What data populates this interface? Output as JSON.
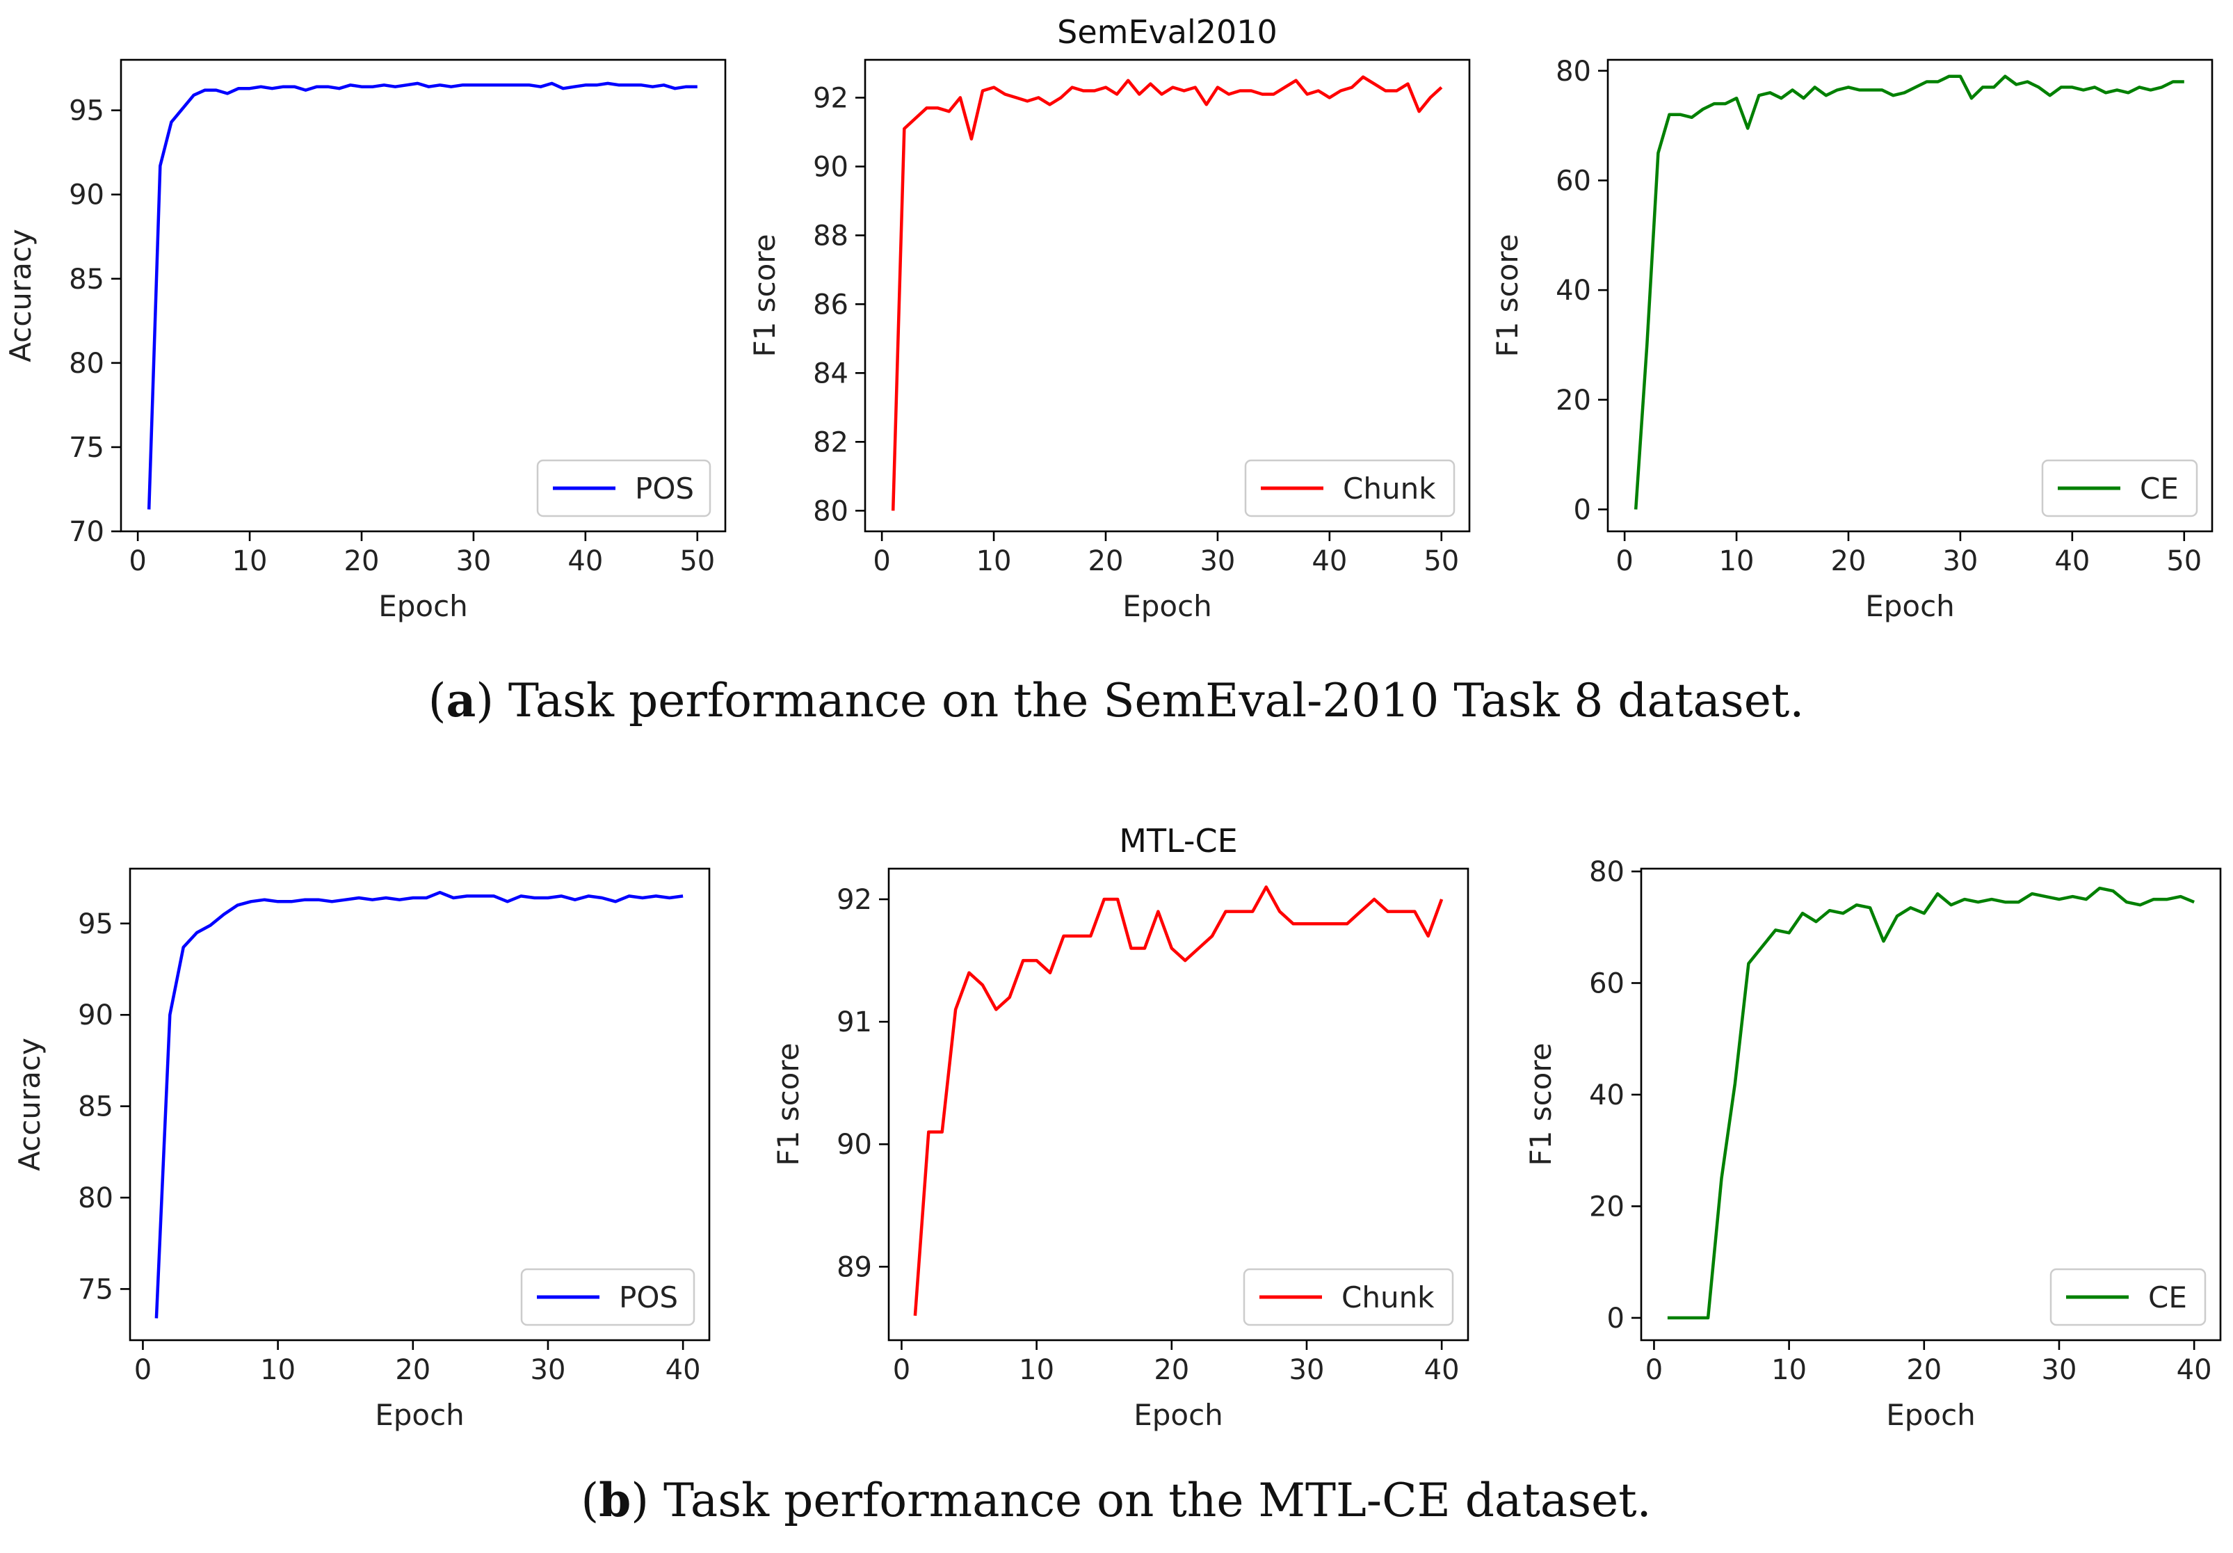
{
  "captions": {
    "a": {
      "letter": "a",
      "text": ") Task performance on the SemEval-2010 Task 8 dataset."
    },
    "b": {
      "letter": "b",
      "text": ") Task performance on the MTL-CE dataset."
    }
  },
  "caption_open_paren": "(",
  "chart_data": [
    {
      "type": "line",
      "title": "",
      "xlabel": "Epoch",
      "ylabel": "Accuracy",
      "xlim": [
        -1.5,
        52.5
      ],
      "ylim": [
        70,
        98
      ],
      "xticks": [
        0,
        10,
        20,
        30,
        40,
        50
      ],
      "yticks": [
        70,
        75,
        80,
        85,
        90,
        95
      ],
      "legend": "lower-right",
      "series": [
        {
          "name": "POS",
          "color": "#0000ff",
          "x": [
            1,
            2,
            3,
            4,
            5,
            6,
            7,
            8,
            9,
            10,
            11,
            12,
            13,
            14,
            15,
            16,
            17,
            18,
            19,
            20,
            21,
            22,
            23,
            24,
            25,
            26,
            27,
            28,
            29,
            30,
            31,
            32,
            33,
            34,
            35,
            36,
            37,
            38,
            39,
            40,
            41,
            42,
            43,
            44,
            45,
            46,
            47,
            48,
            49,
            50
          ],
          "y": [
            71.3,
            91.7,
            94.3,
            95.1,
            95.9,
            96.2,
            96.2,
            96.0,
            96.3,
            96.3,
            96.4,
            96.3,
            96.4,
            96.4,
            96.2,
            96.4,
            96.4,
            96.3,
            96.5,
            96.4,
            96.4,
            96.5,
            96.4,
            96.5,
            96.6,
            96.4,
            96.5,
            96.4,
            96.5,
            96.5,
            96.5,
            96.5,
            96.5,
            96.5,
            96.5,
            96.4,
            96.6,
            96.3,
            96.4,
            96.5,
            96.5,
            96.6,
            96.5,
            96.5,
            96.5,
            96.4,
            96.5,
            96.3,
            96.4,
            96.4
          ]
        }
      ]
    },
    {
      "type": "line",
      "title": "SemEval2010",
      "xlabel": "Epoch",
      "ylabel": "F1 score",
      "xlim": [
        -1.5,
        52.5
      ],
      "ylim": [
        79.4,
        93.1
      ],
      "xticks": [
        0,
        10,
        20,
        30,
        40,
        50
      ],
      "yticks": [
        80,
        82,
        84,
        86,
        88,
        90,
        92
      ],
      "legend": "lower-right",
      "series": [
        {
          "name": "Chunk",
          "color": "#ff0000",
          "x": [
            1,
            2,
            3,
            4,
            5,
            6,
            7,
            8,
            9,
            10,
            11,
            12,
            13,
            14,
            15,
            16,
            17,
            18,
            19,
            20,
            21,
            22,
            23,
            24,
            25,
            26,
            27,
            28,
            29,
            30,
            31,
            32,
            33,
            34,
            35,
            36,
            37,
            38,
            39,
            40,
            41,
            42,
            43,
            44,
            45,
            46,
            47,
            48,
            49,
            50
          ],
          "y": [
            80.0,
            91.1,
            91.4,
            91.7,
            91.7,
            91.6,
            92.0,
            90.8,
            92.2,
            92.3,
            92.1,
            92.0,
            91.9,
            92.0,
            91.8,
            92.0,
            92.3,
            92.2,
            92.2,
            92.3,
            92.1,
            92.5,
            92.1,
            92.4,
            92.1,
            92.3,
            92.2,
            92.3,
            91.8,
            92.3,
            92.1,
            92.2,
            92.2,
            92.1,
            92.1,
            92.3,
            92.5,
            92.1,
            92.2,
            92.0,
            92.2,
            92.3,
            92.6,
            92.4,
            92.2,
            92.2,
            92.4,
            91.6,
            92.0,
            92.3
          ]
        }
      ]
    },
    {
      "type": "line",
      "title": "",
      "xlabel": "Epoch",
      "ylabel": "F1 score",
      "xlim": [
        -1.5,
        52.5
      ],
      "ylim": [
        -4,
        82
      ],
      "xticks": [
        0,
        10,
        20,
        30,
        40,
        50
      ],
      "yticks": [
        0,
        20,
        40,
        60,
        80
      ],
      "legend": "lower-right",
      "series": [
        {
          "name": "CE",
          "color": "#008000",
          "x": [
            1,
            2,
            3,
            4,
            5,
            6,
            7,
            8,
            9,
            10,
            11,
            12,
            13,
            14,
            15,
            16,
            17,
            18,
            19,
            20,
            21,
            22,
            23,
            24,
            25,
            26,
            27,
            28,
            29,
            30,
            31,
            32,
            33,
            34,
            35,
            36,
            37,
            38,
            39,
            40,
            41,
            42,
            43,
            44,
            45,
            46,
            47,
            48,
            49,
            50
          ],
          "y": [
            0,
            30,
            65,
            72,
            72,
            71.5,
            73,
            74,
            74,
            75,
            69.5,
            75.5,
            76,
            75,
            76.5,
            75,
            77,
            75.5,
            76.5,
            77,
            76.5,
            76.5,
            76.5,
            75.5,
            76,
            77,
            78,
            78,
            79,
            79,
            75,
            77,
            77,
            79,
            77.5,
            78,
            77,
            75.5,
            77,
            77,
            76.5,
            77,
            76,
            76.5,
            76,
            77,
            76.5,
            77,
            78,
            78
          ]
        }
      ]
    },
    {
      "type": "line",
      "title": "",
      "xlabel": "Epoch",
      "ylabel": "Accuracy",
      "xlim": [
        -0.95,
        41.95
      ],
      "ylim": [
        72.2,
        98.0
      ],
      "xticks": [
        0,
        10,
        20,
        30,
        40
      ],
      "yticks": [
        75,
        80,
        85,
        90,
        95
      ],
      "legend": "lower-right",
      "series": [
        {
          "name": "POS",
          "color": "#0000ff",
          "x": [
            1,
            2,
            3,
            4,
            5,
            6,
            7,
            8,
            9,
            10,
            11,
            12,
            13,
            14,
            15,
            16,
            17,
            18,
            19,
            20,
            21,
            22,
            23,
            24,
            25,
            26,
            27,
            28,
            29,
            30,
            31,
            32,
            33,
            34,
            35,
            36,
            37,
            38,
            39,
            40
          ],
          "y": [
            73.4,
            90.0,
            93.7,
            94.5,
            94.9,
            95.5,
            96.0,
            96.2,
            96.3,
            96.2,
            96.2,
            96.3,
            96.3,
            96.2,
            96.3,
            96.4,
            96.3,
            96.4,
            96.3,
            96.4,
            96.4,
            96.7,
            96.4,
            96.5,
            96.5,
            96.5,
            96.2,
            96.5,
            96.4,
            96.4,
            96.5,
            96.3,
            96.5,
            96.4,
            96.2,
            96.5,
            96.4,
            96.5,
            96.4,
            96.5
          ]
        }
      ]
    },
    {
      "type": "line",
      "title": "MTL-CE",
      "xlabel": "Epoch",
      "ylabel": "F1 score",
      "xlim": [
        -0.95,
        41.95
      ],
      "ylim": [
        88.4,
        92.25
      ],
      "xticks": [
        0,
        10,
        20,
        30,
        40
      ],
      "yticks": [
        89,
        90,
        91,
        92
      ],
      "legend": "lower-right",
      "series": [
        {
          "name": "Chunk",
          "color": "#ff0000",
          "x": [
            1,
            2,
            3,
            4,
            5,
            6,
            7,
            8,
            9,
            10,
            11,
            12,
            13,
            14,
            15,
            16,
            17,
            18,
            19,
            20,
            21,
            22,
            23,
            24,
            25,
            26,
            27,
            28,
            29,
            30,
            31,
            32,
            33,
            34,
            35,
            36,
            37,
            38,
            39,
            40
          ],
          "y": [
            88.6,
            90.1,
            90.1,
            91.1,
            91.4,
            91.3,
            91.1,
            91.2,
            91.5,
            91.5,
            91.4,
            91.7,
            91.7,
            91.7,
            92.0,
            92.0,
            91.6,
            91.6,
            91.9,
            91.6,
            91.5,
            91.6,
            91.7,
            91.9,
            91.9,
            91.9,
            92.1,
            91.9,
            91.8,
            91.8,
            91.8,
            91.8,
            91.8,
            91.9,
            92.0,
            91.9,
            91.9,
            91.9,
            91.7,
            92.0
          ]
        }
      ]
    },
    {
      "type": "line",
      "title": "",
      "xlabel": "Epoch",
      "ylabel": "F1 score",
      "xlim": [
        -0.95,
        41.95
      ],
      "ylim": [
        -4,
        80.5
      ],
      "xticks": [
        0,
        10,
        20,
        30,
        40
      ],
      "yticks": [
        0,
        20,
        40,
        60,
        80
      ],
      "legend": "lower-right",
      "series": [
        {
          "name": "CE",
          "color": "#008000",
          "x": [
            1,
            2,
            3,
            4,
            5,
            6,
            7,
            8,
            9,
            10,
            11,
            12,
            13,
            14,
            15,
            16,
            17,
            18,
            19,
            20,
            21,
            22,
            23,
            24,
            25,
            26,
            27,
            28,
            29,
            30,
            31,
            32,
            33,
            34,
            35,
            36,
            37,
            38,
            39,
            40
          ],
          "y": [
            0,
            0,
            0,
            0,
            25,
            42,
            63.5,
            66.5,
            69.5,
            69,
            72.5,
            71,
            73,
            72.5,
            74,
            73.5,
            67.5,
            72,
            73.5,
            72.5,
            76,
            74,
            75,
            74.5,
            75,
            74.5,
            74.5,
            76,
            75.5,
            75,
            75.5,
            75,
            77,
            76.5,
            74.5,
            74,
            75,
            75,
            75.5,
            74.5
          ]
        }
      ]
    }
  ]
}
